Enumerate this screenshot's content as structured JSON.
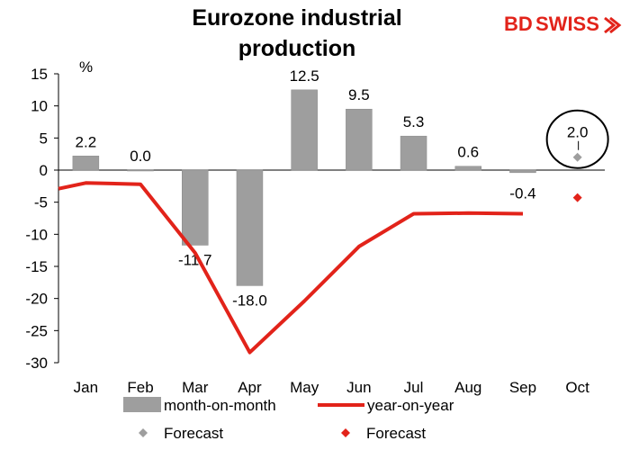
{
  "brand": {
    "logo_text_bd": "BD",
    "logo_text_swiss": "SWISS",
    "color": "#e2231a"
  },
  "chart_data": {
    "type": "bar",
    "title": "Eurozone industrial production",
    "title_lines": [
      "Eurozone industrial",
      "production"
    ],
    "ylabel": "%",
    "ylim": [
      -30,
      15
    ],
    "yticks": [
      15,
      10,
      5,
      0,
      -5,
      -10,
      -15,
      -20,
      -25,
      -30
    ],
    "categories": [
      "Jan",
      "Feb",
      "Mar",
      "Apr",
      "May",
      "Jun",
      "Jul",
      "Aug",
      "Sep",
      "Oct"
    ],
    "series": [
      {
        "name": "month-on-month",
        "kind": "bar",
        "color": "#9e9e9e",
        "values": [
          2.2,
          0.0,
          -11.7,
          -18.0,
          12.5,
          9.5,
          5.3,
          0.6,
          -0.4,
          null
        ],
        "labels": [
          "2.2",
          "0.0",
          "-11.7",
          "-18.0",
          "12.5",
          "9.5",
          "5.3",
          "0.6",
          "-0.4",
          null
        ]
      },
      {
        "name": "year-on-year",
        "kind": "line",
        "color": "#e2231a",
        "values": [
          -2.0,
          -2.2,
          -12.9,
          -28.4,
          -20.4,
          -11.9,
          -6.8,
          -6.7,
          -6.8,
          null
        ]
      },
      {
        "name": "Forecast",
        "kind": "marker",
        "color": "#9e9e9e",
        "values": [
          null,
          null,
          null,
          null,
          null,
          null,
          null,
          null,
          null,
          2.0
        ],
        "labels": [
          null,
          null,
          null,
          null,
          null,
          null,
          null,
          null,
          null,
          "2.0"
        ]
      },
      {
        "name": "Forecast",
        "kind": "marker",
        "color": "#e2231a",
        "values": [
          null,
          null,
          null,
          null,
          null,
          null,
          null,
          null,
          null,
          -4.3
        ]
      }
    ],
    "legend": {
      "placement": "bottom",
      "entries": [
        "month-on-month",
        "year-on-year",
        "Forecast",
        "Forecast"
      ]
    },
    "annotation": {
      "type": "circle",
      "around": "Oct forecast"
    }
  }
}
